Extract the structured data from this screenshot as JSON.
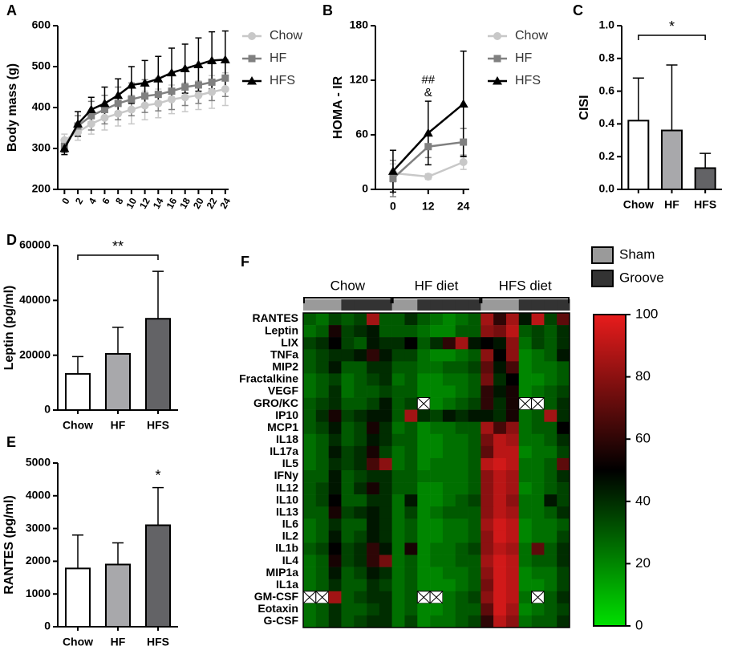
{
  "chart_data": [
    {
      "type": "line",
      "panel": "A",
      "ylabel": "Body mass (g)",
      "x": [
        0,
        2,
        4,
        6,
        8,
        10,
        12,
        14,
        16,
        18,
        20,
        22,
        24
      ],
      "xlim": [
        -1,
        24.5
      ],
      "xticks": [
        0,
        2,
        4,
        6,
        8,
        10,
        12,
        14,
        16,
        18,
        20,
        22,
        24
      ],
      "ylim": [
        200,
        600
      ],
      "yticks": [
        200,
        300,
        400,
        500,
        600
      ],
      "series": [
        {
          "name": "Chow",
          "color": "#c8c8c8",
          "marker": "circle",
          "values": [
            320,
            340,
            360,
            375,
            385,
            395,
            405,
            410,
            420,
            425,
            430,
            438,
            445
          ],
          "errors": [
            15,
            20,
            25,
            30,
            30,
            35,
            35,
            35,
            35,
            35,
            35,
            40,
            40
          ]
        },
        {
          "name": "HF",
          "color": "#808080",
          "marker": "square",
          "values": [
            305,
            355,
            380,
            395,
            410,
            420,
            428,
            432,
            440,
            450,
            455,
            462,
            472
          ],
          "errors": [
            15,
            25,
            35,
            35,
            40,
            40,
            40,
            40,
            45,
            45,
            45,
            45,
            45
          ]
        },
        {
          "name": "HFS",
          "color": "#000000",
          "marker": "triangle",
          "values": [
            300,
            360,
            395,
            410,
            430,
            455,
            460,
            470,
            485,
            495,
            505,
            515,
            517
          ],
          "errors": [
            15,
            30,
            30,
            40,
            40,
            45,
            55,
            55,
            60,
            60,
            65,
            70,
            70
          ]
        }
      ]
    },
    {
      "type": "line",
      "panel": "B",
      "ylabel": "HOMA - IR",
      "x": [
        0,
        12,
        24
      ],
      "xlim": [
        -6,
        26
      ],
      "xticks": [
        0,
        12,
        24
      ],
      "ylim": [
        0,
        180
      ],
      "yticks": [
        0,
        60,
        120,
        180
      ],
      "annotations": {
        "x": 12,
        "labels": [
          "##",
          "&"
        ]
      },
      "series": [
        {
          "name": "Chow",
          "color": "#c8c8c8",
          "marker": "circle",
          "values": [
            18,
            14,
            30
          ],
          "errors": [
            10,
            3,
            8
          ]
        },
        {
          "name": "HF",
          "color": "#808080",
          "marker": "square",
          "values": [
            12,
            47,
            52
          ],
          "errors": [
            20,
            12,
            15
          ]
        },
        {
          "name": "HFS",
          "color": "#000000",
          "marker": "triangle",
          "values": [
            20,
            62,
            94
          ],
          "errors": [
            23,
            35,
            58
          ]
        }
      ]
    },
    {
      "type": "bar",
      "panel": "C",
      "ylabel": "CISI",
      "categories": [
        "Chow",
        "HF",
        "HFS"
      ],
      "values": [
        0.42,
        0.36,
        0.13
      ],
      "errors": [
        0.26,
        0.4,
        0.09
      ],
      "colors": [
        "#ffffff",
        "#a8a8ab",
        "#636366"
      ],
      "ylim": [
        0,
        1
      ],
      "yticks": [
        {
          "value": 0,
          "label": "0.0"
        },
        0.2,
        0.4,
        0.6,
        0.8,
        {
          "value": 1,
          "label": "1.0"
        }
      ],
      "bracket_label": "*"
    },
    {
      "type": "bar",
      "panel": "D",
      "ylabel": "Leptin (pg/ml)",
      "categories": [
        "Chow",
        "HF",
        "HFS"
      ],
      "values": [
        13200,
        20500,
        33300
      ],
      "errors": [
        6300,
        9700,
        17300
      ],
      "colors": [
        "#ffffff",
        "#a8a8ab",
        "#636366"
      ],
      "ylim": [
        0,
        60000
      ],
      "yticks": [
        0,
        20000,
        40000,
        60000
      ],
      "bracket_label": "**"
    },
    {
      "type": "bar",
      "panel": "E",
      "ylabel": "RANTES (pg/ml)",
      "categories": [
        "Chow",
        "HF",
        "HFS"
      ],
      "values": [
        1780,
        1900,
        3100
      ],
      "errors": [
        1020,
        660,
        1150
      ],
      "colors": [
        "#ffffff",
        "#a8a8ab",
        "#636366"
      ],
      "ylim": [
        0,
        5000
      ],
      "yticks": [
        0,
        1000,
        2000,
        3000,
        4000,
        5000
      ],
      "bar_annotations": [
        null,
        null,
        "*"
      ]
    },
    {
      "type": "heatmap",
      "panel": "F",
      "legend": [
        {
          "name": "Sham",
          "color": "#9a9a9a"
        },
        {
          "name": "Groove",
          "color": "#333333"
        }
      ],
      "groups": [
        {
          "name": "Chow",
          "columns": [
            "Sham",
            "Sham",
            "Sham",
            "Groove",
            "Groove",
            "Groove",
            "Groove"
          ]
        },
        {
          "name": "HF diet",
          "columns": [
            "Sham",
            "Sham",
            "Groove",
            "Groove",
            "Groove",
            "Groove",
            "Groove"
          ]
        },
        {
          "name": "HFS diet",
          "columns": [
            "Sham",
            "Sham",
            "Sham",
            "Groove",
            "Groove",
            "Groove",
            "Groove"
          ]
        }
      ],
      "rows": [
        "RANTES",
        "Leptin",
        "LIX",
        "TNFa",
        "MIP2",
        "Fractalkine",
        "VEGF",
        "GRO/KC",
        "IP10",
        "MCP1",
        "IL18",
        "IL17a",
        "IL5",
        "IFNy",
        "IL12",
        "IL10",
        "IL13",
        "IL6",
        "IL2",
        "IL1b",
        "IL4",
        "MIP1a",
        "IL1a",
        "GM-CSF",
        "Eotaxin",
        "G-CSF"
      ],
      "values": [
        [
          30,
          25,
          35,
          30,
          35,
          85,
          30,
          30,
          40,
          30,
          25,
          20,
          25,
          30,
          85,
          60,
          85,
          45,
          90,
          35,
          70
        ],
        [
          25,
          30,
          55,
          35,
          40,
          45,
          30,
          30,
          30,
          25,
          20,
          20,
          30,
          30,
          80,
          75,
          90,
          30,
          35,
          30,
          40
        ],
        [
          35,
          40,
          50,
          35,
          30,
          45,
          40,
          40,
          50,
          30,
          40,
          60,
          85,
          45,
          50,
          45,
          80,
          25,
          35,
          30,
          40
        ],
        [
          30,
          35,
          40,
          40,
          45,
          60,
          45,
          35,
          35,
          25,
          20,
          20,
          25,
          30,
          80,
          50,
          80,
          20,
          25,
          30,
          45
        ],
        [
          30,
          35,
          45,
          30,
          30,
          40,
          40,
          30,
          30,
          25,
          25,
          30,
          30,
          35,
          70,
          45,
          65,
          20,
          25,
          25,
          30
        ],
        [
          25,
          30,
          35,
          25,
          30,
          35,
          40,
          25,
          30,
          20,
          20,
          25,
          25,
          30,
          75,
          40,
          50,
          20,
          20,
          25,
          30
        ],
        [
          25,
          30,
          40,
          25,
          30,
          30,
          35,
          30,
          30,
          20,
          20,
          20,
          25,
          30,
          60,
          45,
          55,
          20,
          25,
          30,
          35
        ],
        [
          30,
          35,
          40,
          30,
          30,
          35,
          45,
          30,
          35,
          null,
          20,
          25,
          30,
          35,
          60,
          40,
          55,
          null,
          null,
          30,
          40
        ],
        [
          30,
          40,
          55,
          35,
          40,
          45,
          45,
          30,
          85,
          40,
          35,
          45,
          40,
          45,
          45,
          40,
          55,
          25,
          30,
          85,
          40
        ],
        [
          30,
          35,
          45,
          30,
          35,
          55,
          40,
          25,
          30,
          20,
          25,
          25,
          30,
          30,
          85,
          65,
          80,
          25,
          30,
          30,
          50
        ],
        [
          25,
          30,
          40,
          30,
          35,
          45,
          40,
          30,
          30,
          20,
          20,
          25,
          25,
          30,
          75,
          90,
          85,
          25,
          25,
          30,
          40
        ],
        [
          25,
          30,
          45,
          35,
          40,
          55,
          35,
          25,
          30,
          20,
          20,
          25,
          25,
          30,
          70,
          90,
          90,
          20,
          25,
          25,
          35
        ],
        [
          25,
          30,
          40,
          35,
          40,
          65,
          80,
          25,
          30,
          20,
          25,
          25,
          25,
          30,
          90,
          95,
          90,
          25,
          25,
          30,
          70
        ],
        [
          30,
          30,
          45,
          30,
          35,
          40,
          40,
          30,
          30,
          25,
          25,
          25,
          25,
          30,
          80,
          90,
          85,
          25,
          25,
          30,
          40
        ],
        [
          30,
          35,
          45,
          30,
          40,
          55,
          40,
          30,
          30,
          20,
          20,
          25,
          25,
          30,
          80,
          90,
          85,
          20,
          25,
          30,
          35
        ],
        [
          30,
          35,
          50,
          30,
          30,
          40,
          40,
          25,
          45,
          20,
          20,
          25,
          30,
          35,
          80,
          90,
          80,
          25,
          25,
          45,
          35
        ],
        [
          30,
          30,
          55,
          35,
          40,
          45,
          40,
          25,
          35,
          20,
          25,
          30,
          30,
          30,
          80,
          90,
          85,
          25,
          25,
          30,
          40
        ],
        [
          25,
          30,
          40,
          30,
          30,
          45,
          40,
          25,
          30,
          20,
          20,
          25,
          25,
          30,
          85,
          95,
          90,
          20,
          25,
          25,
          30
        ],
        [
          25,
          30,
          45,
          30,
          35,
          45,
          40,
          25,
          30,
          20,
          20,
          25,
          25,
          30,
          80,
          95,
          90,
          20,
          25,
          25,
          35
        ],
        [
          30,
          35,
          50,
          35,
          40,
          60,
          45,
          25,
          55,
          20,
          25,
          25,
          30,
          35,
          80,
          90,
          85,
          25,
          70,
          30,
          40
        ],
        [
          25,
          30,
          55,
          35,
          40,
          60,
          75,
          25,
          30,
          20,
          25,
          25,
          30,
          30,
          85,
          95,
          90,
          25,
          30,
          30,
          40
        ],
        [
          25,
          30,
          45,
          30,
          35,
          45,
          40,
          25,
          30,
          20,
          20,
          25,
          25,
          30,
          80,
          95,
          90,
          20,
          25,
          25,
          35
        ],
        [
          25,
          30,
          40,
          30,
          30,
          40,
          35,
          25,
          30,
          20,
          20,
          20,
          25,
          30,
          75,
          95,
          90,
          20,
          20,
          25,
          35
        ],
        [
          null,
          null,
          85,
          30,
          35,
          40,
          40,
          25,
          30,
          null,
          null,
          25,
          30,
          35,
          80,
          95,
          90,
          25,
          null,
          30,
          40
        ],
        [
          25,
          30,
          40,
          30,
          30,
          35,
          40,
          25,
          30,
          20,
          20,
          25,
          30,
          30,
          70,
          95,
          85,
          20,
          25,
          30,
          35
        ],
        [
          25,
          30,
          40,
          30,
          35,
          40,
          40,
          25,
          35,
          20,
          25,
          25,
          30,
          35,
          60,
          90,
          80,
          25,
          30,
          30,
          40
        ]
      ],
      "colorscale": {
        "colors": [
          "#00e000",
          "#000000",
          "#e81c1c"
        ],
        "lim": [
          0,
          100
        ],
        "ticks": [
          0,
          20,
          40,
          60,
          80,
          100
        ]
      }
    }
  ]
}
